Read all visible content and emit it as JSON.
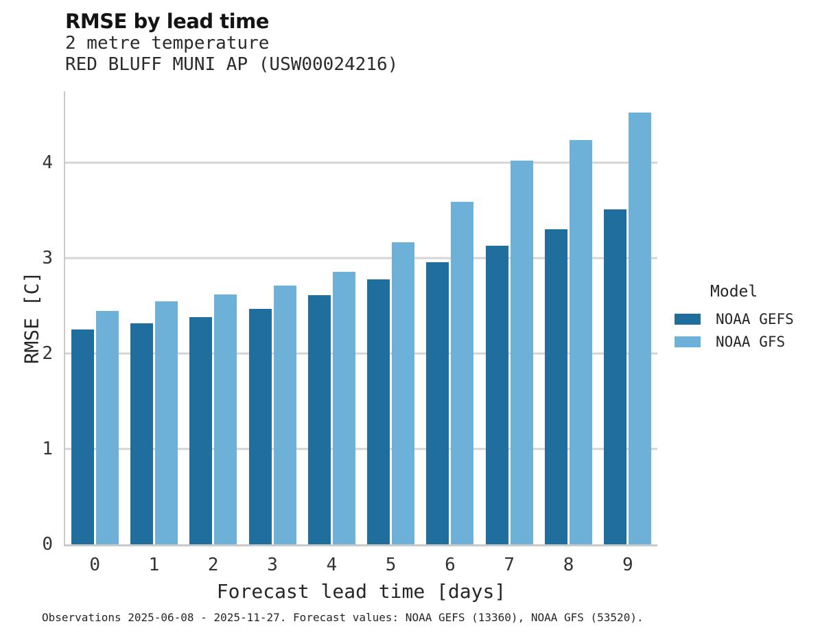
{
  "header": {
    "note": "titles are bound from chart_data"
  },
  "chart_data": {
    "type": "bar",
    "title": "RMSE by lead time",
    "subtitle": "2 metre temperature",
    "station": "RED BLUFF MUNI AP (USW00024216)",
    "categories": [
      "0",
      "1",
      "2",
      "3",
      "4",
      "5",
      "6",
      "7",
      "8",
      "9"
    ],
    "series": [
      {
        "name": "NOAA GEFS",
        "color": "#1f6e9e",
        "values": [
          2.25,
          2.32,
          2.38,
          2.47,
          2.61,
          2.78,
          2.96,
          3.13,
          3.3,
          3.51
        ]
      },
      {
        "name": "NOAA GFS",
        "color": "#6db1d8",
        "values": [
          2.45,
          2.55,
          2.62,
          2.71,
          2.86,
          3.17,
          3.59,
          4.02,
          4.24,
          4.53
        ]
      }
    ],
    "xlabel": "Forecast lead time [days]",
    "ylabel": "RMSE [C]",
    "ylim": [
      0,
      4.75
    ],
    "yticks": [
      0,
      1,
      2,
      3,
      4
    ],
    "grid": "horizontal-only",
    "legend_position": "right-outside"
  },
  "legend": {
    "title": "Model",
    "items": [
      {
        "label": "NOAA GEFS",
        "color": "#1f6e9e"
      },
      {
        "label": "NOAA GFS",
        "color": "#6db1d8"
      }
    ]
  },
  "caption": "Observations 2025-06-08 - 2025-11-27. Forecast values: NOAA GEFS (13360), NOAA GFS (53520)."
}
